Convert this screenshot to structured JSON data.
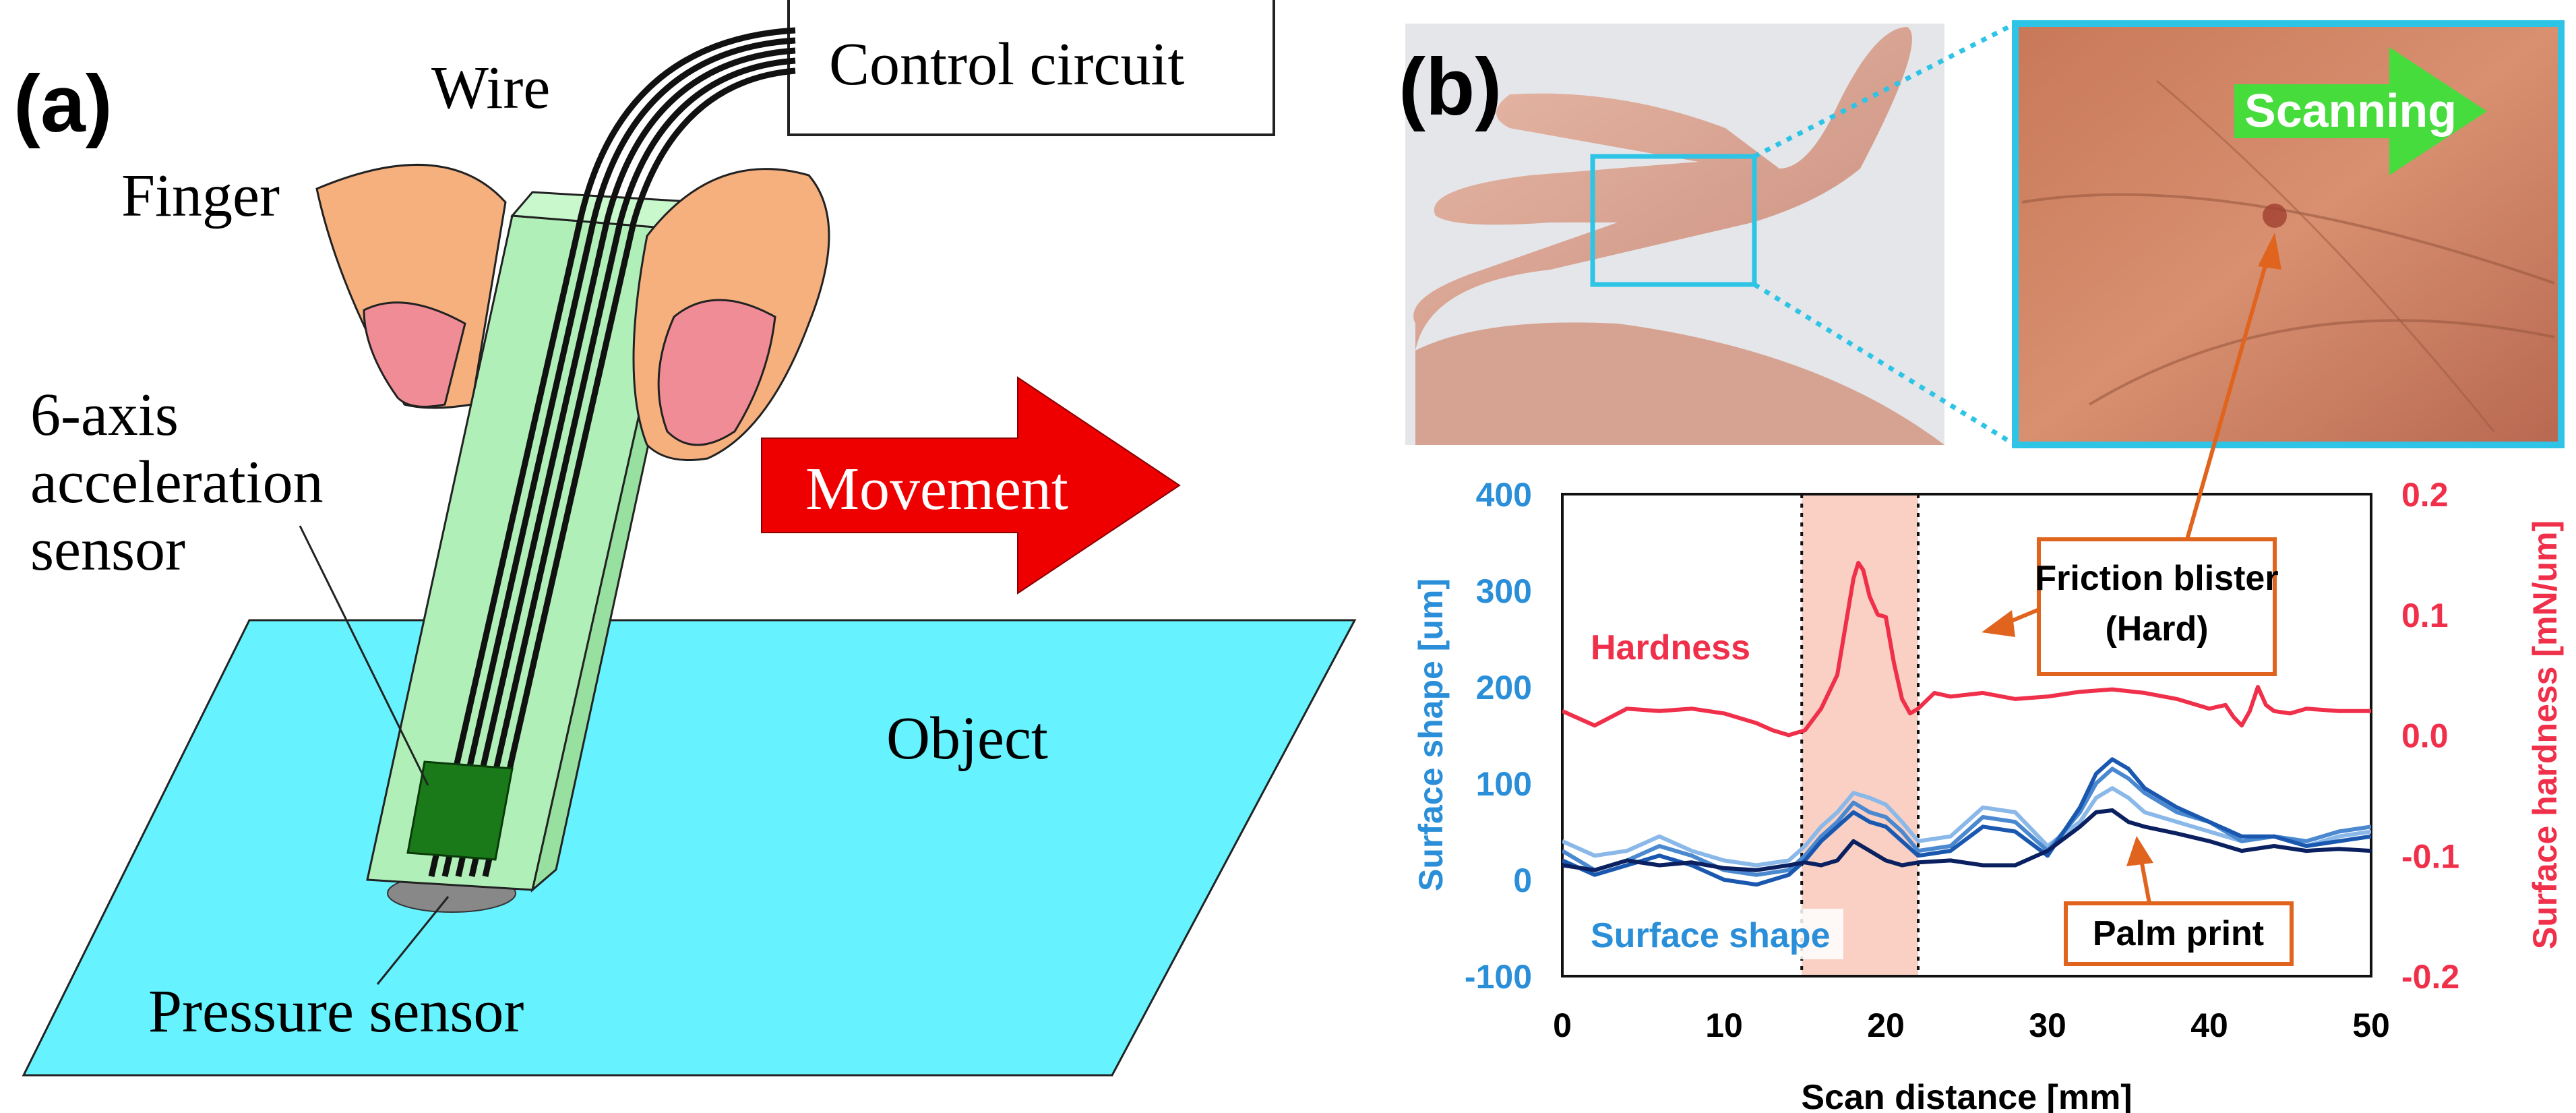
{
  "panel_a": {
    "label": "(a)",
    "wire_label": "Wire",
    "control_circuit_label": "Control circuit",
    "finger_label": "Finger",
    "accel_label_lines": [
      "6-axis",
      "acceleration",
      "sensor"
    ],
    "movement_label": "Movement",
    "object_label": "Object",
    "pressure_sensor_label": "Pressure sensor"
  },
  "panel_b": {
    "label": "(b)",
    "scanning_label": "Scanning",
    "hardness_label": "Hardness",
    "surface_shape_label": "Surface shape",
    "friction_blister_lines": [
      "Friction blister",
      "(Hard)"
    ],
    "palm_print_label": "Palm print",
    "colors": {
      "highlight_box": "#2ec4e6",
      "scan_arrow": "#3ee03a",
      "hardness": "#f0304a",
      "surface_axis": "#2a8fd8",
      "callout": "#e0641e",
      "blister_band": "#f8c8b8"
    }
  },
  "chart_data": {
    "type": "line",
    "xlabel": "Scan distance [mm]",
    "ylabel": "Surface shape [um]",
    "y2label": "Surface hardness [mN/um]",
    "xlim": [
      0,
      50
    ],
    "ylim": [
      -100,
      400
    ],
    "y2lim": [
      -0.2,
      0.2
    ],
    "xticks": [
      "0",
      "10",
      "20",
      "30",
      "40",
      "50"
    ],
    "yticks": [
      "-100",
      "0",
      "100",
      "200",
      "300",
      "400"
    ],
    "y2ticks": [
      "-0.2",
      "-0.1",
      "0.0",
      "0.1",
      "0.2"
    ],
    "highlight_range": [
      14.8,
      22
    ],
    "series": [
      {
        "axis": "right",
        "color": "#f0304a",
        "x": [
          0,
          2,
          4,
          6,
          8,
          10,
          12,
          13,
          14,
          15,
          16,
          17,
          17.5,
          18,
          18.3,
          18.6,
          19,
          19.5,
          20,
          20.5,
          21,
          21.5,
          22,
          23,
          24,
          26,
          28,
          30,
          32,
          34,
          36,
          38,
          40,
          41,
          41.5,
          42,
          42.5,
          43,
          43.5,
          44,
          45,
          46,
          48,
          50
        ],
        "y": [
          0.02,
          0.008,
          0.022,
          0.02,
          0.022,
          0.018,
          0.01,
          0.004,
          0.0,
          0.004,
          0.022,
          0.05,
          0.09,
          0.13,
          0.143,
          0.137,
          0.115,
          0.1,
          0.098,
          0.06,
          0.03,
          0.018,
          0.022,
          0.035,
          0.032,
          0.035,
          0.03,
          0.032,
          0.036,
          0.038,
          0.035,
          0.03,
          0.022,
          0.025,
          0.015,
          0.008,
          0.02,
          0.04,
          0.025,
          0.02,
          0.018,
          0.022,
          0.02,
          0.02
        ]
      },
      {
        "axis": "left",
        "color": "#8ab8e8",
        "x": [
          0,
          2,
          4,
          6,
          8,
          10,
          12,
          14,
          15,
          16,
          17,
          18,
          19,
          20,
          21,
          22,
          24,
          26,
          28,
          30,
          32,
          33,
          34,
          35,
          36,
          38,
          40,
          42,
          44,
          46,
          48,
          50
        ],
        "y": [
          40,
          25,
          30,
          45,
          30,
          20,
          15,
          20,
          35,
          55,
          70,
          90,
          85,
          78,
          60,
          40,
          45,
          75,
          70,
          35,
          60,
          85,
          95,
          85,
          70,
          60,
          50,
          40,
          45,
          35,
          45,
          50
        ]
      },
      {
        "axis": "left",
        "color": "#4a88d0",
        "x": [
          0,
          2,
          4,
          6,
          8,
          10,
          12,
          14,
          15,
          16,
          17,
          18,
          19,
          20,
          21,
          22,
          24,
          26,
          28,
          30,
          32,
          33,
          34,
          35,
          36,
          38,
          40,
          42,
          44,
          46,
          48,
          50
        ],
        "y": [
          30,
          10,
          20,
          35,
          25,
          10,
          5,
          10,
          25,
          45,
          60,
          80,
          70,
          65,
          50,
          30,
          35,
          65,
          60,
          30,
          70,
          100,
          115,
          105,
          90,
          70,
          60,
          40,
          45,
          40,
          50,
          55
        ]
      },
      {
        "axis": "left",
        "color": "#1a58b0",
        "x": [
          0,
          2,
          4,
          6,
          8,
          10,
          12,
          14,
          15,
          16,
          17,
          18,
          19,
          20,
          21,
          22,
          24,
          26,
          28,
          30,
          32,
          33,
          34,
          35,
          36,
          38,
          40,
          42,
          44,
          46,
          48,
          50
        ],
        "y": [
          20,
          5,
          15,
          25,
          15,
          0,
          -5,
          5,
          20,
          40,
          55,
          70,
          60,
          55,
          40,
          25,
          30,
          55,
          50,
          25,
          75,
          110,
          125,
          115,
          95,
          75,
          60,
          45,
          45,
          35,
          40,
          45
        ]
      },
      {
        "axis": "left",
        "color": "#0a2060",
        "x": [
          0,
          2,
          4,
          6,
          8,
          10,
          12,
          14,
          15,
          16,
          17,
          18,
          19,
          20,
          21,
          22,
          24,
          26,
          28,
          30,
          32,
          33,
          34,
          35,
          36,
          38,
          40,
          42,
          44,
          46,
          48,
          50
        ],
        "y": [
          15,
          10,
          20,
          15,
          18,
          12,
          10,
          15,
          18,
          15,
          20,
          40,
          30,
          20,
          15,
          18,
          20,
          15,
          15,
          30,
          55,
          70,
          72,
          60,
          55,
          48,
          40,
          30,
          35,
          30,
          32,
          30
        ]
      }
    ]
  }
}
